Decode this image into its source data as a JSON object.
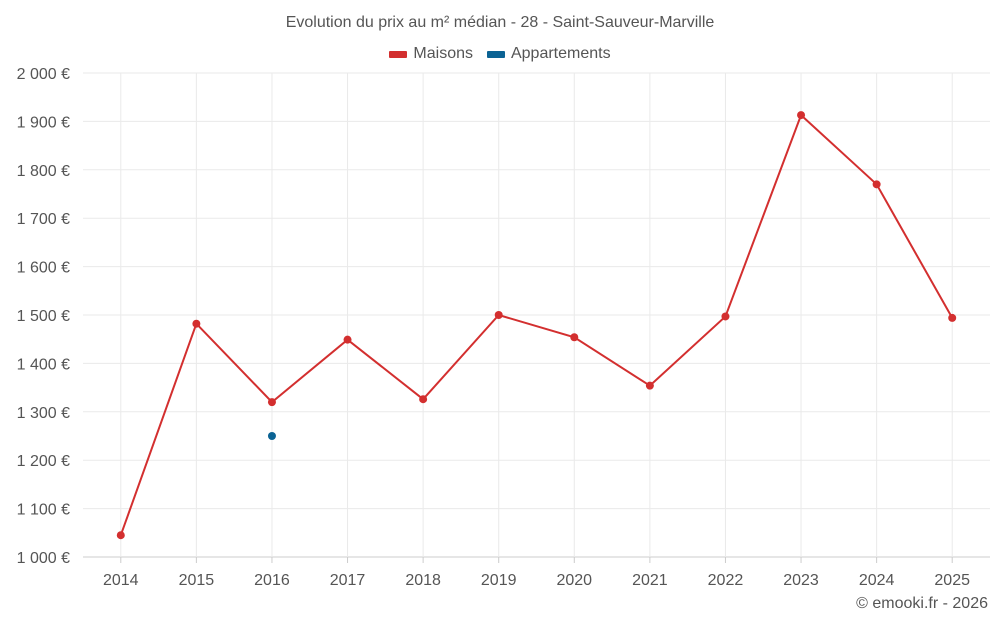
{
  "chart_data": {
    "type": "line",
    "title": "Evolution du prix au m² médian - 28 - Saint-Sauveur-Marville",
    "categories": [
      "2014",
      "2015",
      "2016",
      "2017",
      "2018",
      "2019",
      "2020",
      "2021",
      "2022",
      "2023",
      "2024",
      "2025"
    ],
    "series": [
      {
        "name": "Maisons",
        "color": "#d32f2f",
        "values": [
          1045,
          1482,
          1320,
          1449,
          1326,
          1500,
          1454,
          1354,
          1497,
          1913,
          1770,
          1494
        ]
      },
      {
        "name": "Appartements",
        "color": "#0b6394",
        "values": [
          null,
          null,
          1250,
          null,
          null,
          null,
          null,
          null,
          null,
          null,
          null,
          null
        ]
      }
    ],
    "ylim": [
      1000,
      2000
    ],
    "yticks": [
      "1 000 €",
      "1 100 €",
      "1 200 €",
      "1 300 €",
      "1 400 €",
      "1 500 €",
      "1 600 €",
      "1 700 €",
      "1 800 €",
      "1 900 €",
      "2 000 €"
    ],
    "xlabel": "",
    "ylabel": "",
    "grid": true,
    "legend_position": "top-center"
  },
  "footer": {
    "copyright": "© emooki.fr - 2026"
  }
}
